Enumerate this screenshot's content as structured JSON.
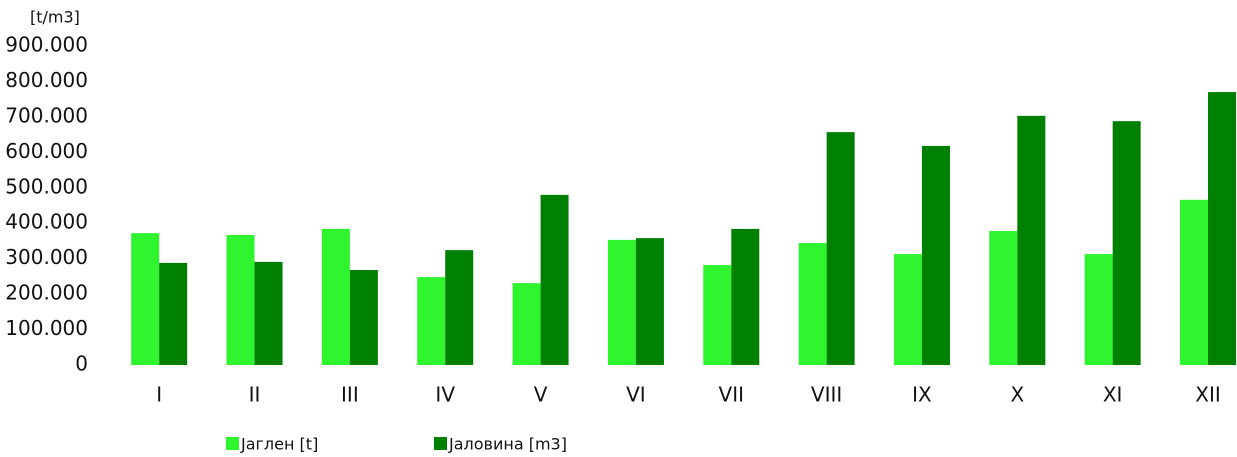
{
  "chart_data": {
    "type": "bar",
    "y_axis_label": "[t/m3]",
    "categories": [
      "I",
      "II",
      "III",
      "IV",
      "V",
      "VI",
      "VII",
      "VIII",
      "IX",
      "X",
      "XI",
      "XII"
    ],
    "series": [
      {
        "name": "Јаглен [t]",
        "color": "#2ef52e",
        "values": [
          372000,
          367000,
          384000,
          248000,
          231000,
          353000,
          282000,
          344000,
          313000,
          378000,
          313000,
          466000
        ]
      },
      {
        "name": "Јаловина [m3]",
        "color": "#008000",
        "values": [
          288000,
          291000,
          268000,
          324000,
          480000,
          358000,
          384000,
          657000,
          618000,
          703000,
          688000,
          770000
        ]
      }
    ],
    "ylim": [
      0,
      900000
    ],
    "yticks": [
      0,
      {
        "value": 100000,
        "label": "100.000"
      },
      {
        "value": 200000,
        "label": "200.000"
      },
      {
        "value": 300000,
        "label": "300.000"
      },
      {
        "value": 400000,
        "label": "400.000"
      },
      {
        "value": 500000,
        "label": "500.000"
      },
      {
        "value": 600000,
        "label": "600.000"
      },
      {
        "value": 700000,
        "label": "700.000"
      },
      {
        "value": 800000,
        "label": "800.000"
      },
      {
        "value": 900000,
        "label": "900.000"
      }
    ],
    "grid": false,
    "legend": "bottom"
  }
}
